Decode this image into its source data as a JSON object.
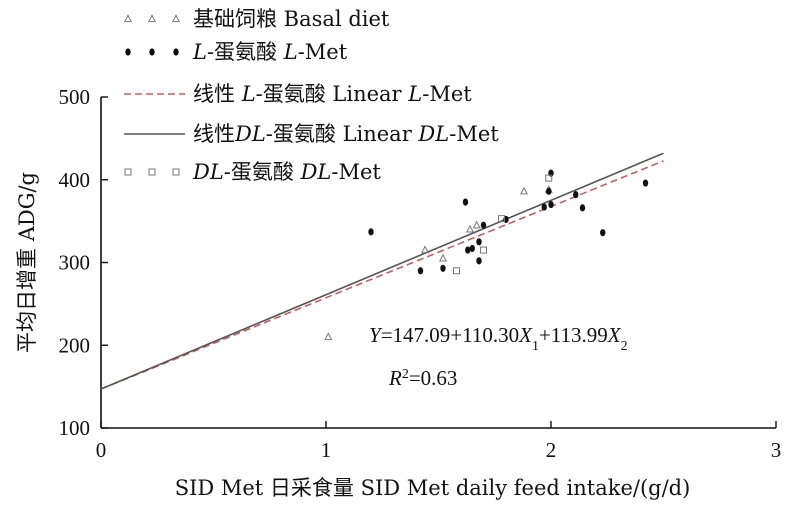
{
  "chart_data": {
    "type": "scatter",
    "title": "",
    "xlabel": "SID Met 日采食量  SID Met daily feed intake/(g/d)",
    "ylabel": "平均日增重  ADG/g",
    "xlim": [
      0,
      3
    ],
    "ylim": [
      100,
      500
    ],
    "xticks": [
      "0",
      "1",
      "2",
      "3"
    ],
    "yticks": [
      "100",
      "200",
      "300",
      "400",
      "500"
    ],
    "grid": false,
    "legend_position": "top-left",
    "series": [
      {
        "name": "基础饲粮  Basal diet",
        "marker": "triangle",
        "color": "#777777",
        "points": [
          [
            1.01,
            210
          ],
          [
            1.44,
            315
          ],
          [
            1.52,
            305
          ],
          [
            1.64,
            340
          ],
          [
            1.67,
            345
          ],
          [
            1.88,
            386
          ],
          [
            1.99,
            388
          ]
        ]
      },
      {
        "name": "L-蛋氨酸  L-Met",
        "marker": "dot",
        "color": "#111111",
        "points": [
          [
            1.2,
            337
          ],
          [
            1.42,
            290
          ],
          [
            1.52,
            293
          ],
          [
            1.62,
            373
          ],
          [
            1.63,
            315
          ],
          [
            1.65,
            317
          ],
          [
            1.68,
            325
          ],
          [
            1.68,
            302
          ],
          [
            1.7,
            345
          ],
          [
            1.8,
            352
          ],
          [
            1.97,
            367
          ],
          [
            1.99,
            386
          ],
          [
            2.0,
            370
          ],
          [
            2.0,
            408
          ],
          [
            2.11,
            382
          ],
          [
            2.14,
            366
          ],
          [
            2.23,
            336
          ],
          [
            2.42,
            396
          ]
        ]
      },
      {
        "name": "线性 L-蛋氨酸  Linear L-Met",
        "type": "line",
        "style": "dashed",
        "color": "#c06060",
        "points": [
          [
            0,
            147.09
          ],
          [
            2.5,
            422.84
          ]
        ]
      },
      {
        "name": "线性DL-蛋氨酸  Linear DL-Met",
        "type": "line",
        "style": "solid",
        "color": "#555555",
        "points": [
          [
            0,
            147.09
          ],
          [
            2.5,
            432.07
          ]
        ]
      },
      {
        "name": "DL-蛋氨酸  DL-Met",
        "marker": "square",
        "color": "#777777",
        "points": [
          [
            1.58,
            290
          ],
          [
            1.7,
            315
          ],
          [
            1.78,
            353
          ],
          [
            1.99,
            402
          ]
        ]
      }
    ],
    "annotations": {
      "equation": "Y=147.09+110.30X1+113.99X2",
      "r2": "R2=0.63"
    }
  }
}
